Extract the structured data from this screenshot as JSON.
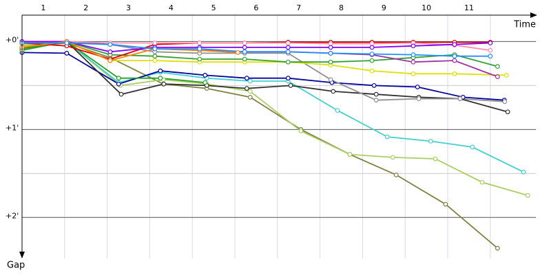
{
  "chart_data": {
    "type": "line",
    "x_label": "Time",
    "y_label": "Gap",
    "xlim": [
      0,
      12.07
    ],
    "ylim": [
      -18,
      148
    ],
    "y_inverted": true,
    "xticks": [
      {
        "value": 0.5,
        "label": "1"
      },
      {
        "value": 1.5,
        "label": "2"
      },
      {
        "value": 2.5,
        "label": "3"
      },
      {
        "value": 3.5,
        "label": "4"
      },
      {
        "value": 4.5,
        "label": "5"
      },
      {
        "value": 5.5,
        "label": "6"
      },
      {
        "value": 6.5,
        "label": "7"
      },
      {
        "value": 7.5,
        "label": "8"
      },
      {
        "value": 8.5,
        "label": "9"
      },
      {
        "value": 9.5,
        "label": "10"
      },
      {
        "value": 10.5,
        "label": "11"
      }
    ],
    "yticks": [
      {
        "value": 0,
        "label": "+0'"
      },
      {
        "value": 60,
        "label": "+1'"
      },
      {
        "value": 120,
        "label": "+2'"
      }
    ],
    "grid": true,
    "series": [
      {
        "color": "#808040",
        "x": [
          0,
          1.05,
          2.07,
          3.32,
          4.34,
          5.36,
          6.55,
          7.7,
          8.79,
          9.95,
          11.17
        ],
        "values": [
          4,
          1,
          11,
          29,
          32,
          38,
          60,
          77,
          91,
          111,
          141
        ]
      },
      {
        "color": "#a8d060",
        "x": [
          0,
          1.05,
          2.31,
          3.32,
          4.34,
          5.36,
          6.55,
          7.7,
          8.71,
          9.71,
          10.81,
          11.88
        ],
        "values": [
          3,
          0,
          30,
          26,
          29,
          34,
          61,
          77,
          79,
          80,
          96,
          105
        ]
      },
      {
        "color": "#40d0d0",
        "x": [
          0,
          1.05,
          2.27,
          3.25,
          4.34,
          5.36,
          6.25,
          7.41,
          8.58,
          9.6,
          10.58,
          11.78
        ],
        "values": [
          0,
          0,
          28,
          21,
          25,
          27,
          27,
          47,
          65,
          68,
          72,
          89
        ]
      },
      {
        "color": "#0000a0",
        "x": [
          0,
          1.05,
          2.27,
          3.25,
          4.3,
          5.28,
          6.25,
          7.28,
          8.27,
          9.29,
          10.36,
          11.33
        ],
        "values": [
          7.5,
          8,
          29,
          20,
          23,
          25,
          25,
          28,
          30,
          31,
          38,
          40
        ]
      },
      {
        "color": "#303030",
        "x": [
          0,
          1.05,
          2.33,
          3.33,
          4.34,
          5.28,
          6.31,
          7.31,
          8.32,
          9.32,
          10.29,
          11.41
        ],
        "values": [
          5,
          0,
          36,
          29,
          30,
          32,
          30,
          34,
          36,
          38,
          39,
          48
        ]
      },
      {
        "color": "#909090",
        "x": [
          0,
          1.05,
          2.07,
          3.12,
          4.17,
          5.23,
          6.25,
          7.25,
          8.32,
          9.32,
          10.29,
          11.34
        ],
        "values": [
          0,
          0,
          2,
          7,
          8,
          8,
          8,
          26,
          40,
          39,
          39,
          41
        ]
      },
      {
        "color": "#e0e000",
        "x": [
          0,
          1.05,
          2.07,
          3.12,
          4.17,
          5.23,
          6.25,
          7.25,
          8.22,
          9.19,
          10.16,
          11.38
        ],
        "values": [
          2,
          0,
          13,
          13,
          14,
          14,
          14,
          16,
          20,
          22,
          22,
          23
        ]
      },
      {
        "color": "#20a020",
        "x": [
          0,
          1.05,
          2.27,
          3.25,
          4.3
        ],
        "values": [
          5,
          0,
          25,
          25,
          28
        ]
      },
      {
        "color": "#30a030",
        "x": [
          0,
          1.05,
          2.07,
          3.12,
          4.17,
          5.23,
          6.25,
          7.25,
          8.22,
          9.19,
          10.16,
          11.17
        ],
        "values": [
          6,
          0,
          9,
          10,
          12,
          12,
          14,
          14,
          13,
          11,
          9,
          17
        ]
      },
      {
        "color": "#a030a0",
        "x": [
          0,
          1.05,
          2.07,
          3.12,
          4.17,
          5.23,
          6.25,
          7.25,
          8.22,
          9.19,
          10.16,
          11.17
        ],
        "values": [
          1,
          0,
          2,
          5,
          6,
          7,
          7,
          8,
          9,
          14,
          13,
          24
        ]
      },
      {
        "color": "#e00000",
        "x": [
          0,
          1.05,
          2.07,
          3.12,
          4.17,
          5.23,
          6.25,
          7.25,
          8.22,
          9.19,
          10.16,
          11.0
        ],
        "values": [
          1,
          3,
          12,
          2,
          1,
          1,
          0.5,
          0.5,
          0.5,
          0.5,
          0.5,
          0.5
        ]
      },
      {
        "color": "#ff90b0",
        "x": [
          0,
          1.05,
          2.07,
          3.12,
          4.17,
          5.23,
          6.25,
          7.25,
          8.22,
          9.19,
          10.16,
          11.0
        ],
        "values": [
          0,
          0,
          1,
          1,
          1,
          1,
          1,
          1.5,
          1.5,
          1,
          2.5,
          6
        ]
      },
      {
        "color": "#8000ff",
        "x": [
          0,
          1.05,
          2.07,
          3.12,
          4.17,
          5.23,
          6.25,
          7.25,
          8.22,
          9.19,
          10.16,
          11.0
        ],
        "values": [
          0,
          0,
          7,
          4,
          4,
          4,
          4,
          4,
          4,
          3,
          2,
          1
        ]
      },
      {
        "color": "#ff8000",
        "x": [
          0,
          1.05,
          2.07,
          3.12,
          4.17,
          5.07
        ],
        "values": [
          4,
          0,
          13,
          5,
          6,
          7.5
        ]
      },
      {
        "color": "#2090ff",
        "x": [
          0,
          1.05,
          2.07,
          3.12,
          4.17,
          5.23,
          6.25,
          7.25,
          8.22,
          9.19,
          10.16,
          11.0
        ],
        "values": [
          1,
          1,
          2,
          5,
          5,
          7,
          7,
          8,
          8.5,
          9,
          10,
          10
        ]
      }
    ]
  }
}
